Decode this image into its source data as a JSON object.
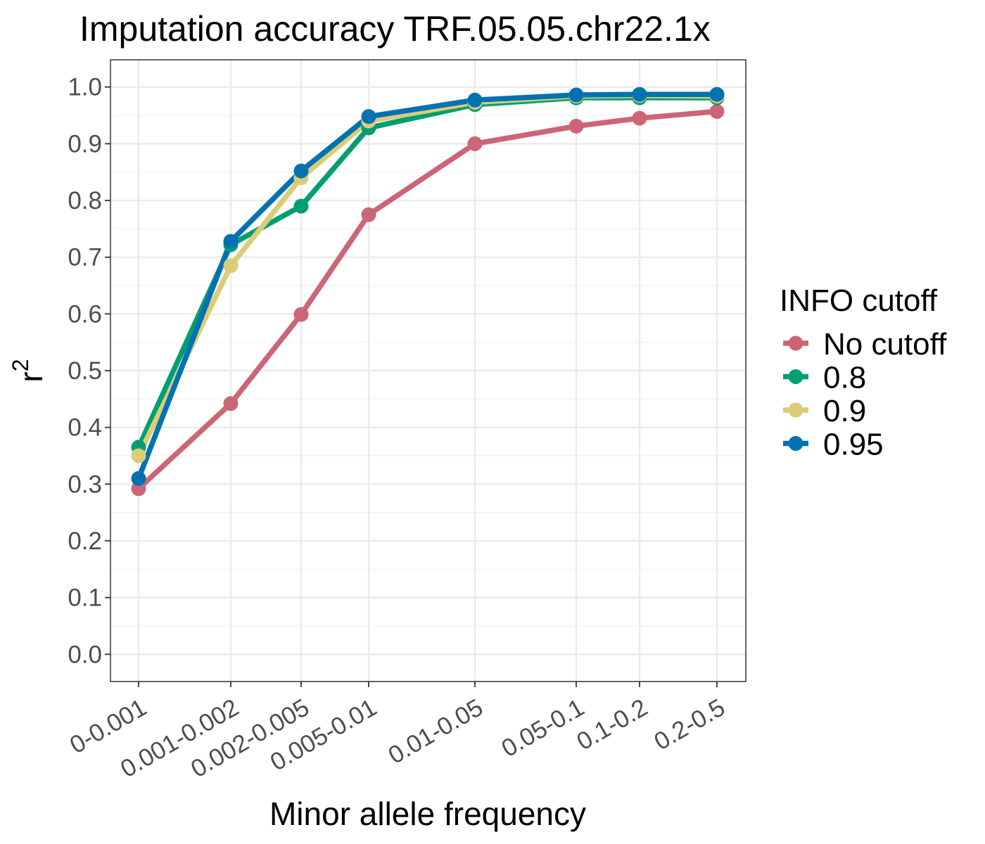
{
  "chart_data": {
    "type": "line",
    "title": "Imputation accuracy TRF.05.05.chr22.1x",
    "xlabel": "Minor allele frequency",
    "ylabel_base": "r",
    "ylabel_sup": "2",
    "categories": [
      "0-0.001",
      "0.001-0.002",
      "0.002-0.005",
      "0.005-0.01",
      "0.01-0.05",
      "0.05-0.1",
      "0.1-0.2",
      "0.2-0.5"
    ],
    "ylim": [
      -0.048,
      1.048
    ],
    "y_ticks": [
      "0.0",
      "0.1",
      "0.2",
      "0.3",
      "0.4",
      "0.5",
      "0.6",
      "0.7",
      "0.8",
      "0.9",
      "1.0"
    ],
    "grid": true,
    "legend": {
      "title": "INFO cutoff",
      "position": "right"
    },
    "series": [
      {
        "name": "No cutoff",
        "color": "#CC6677",
        "values": [
          0.292,
          0.442,
          0.599,
          0.775,
          0.9,
          0.931,
          0.945,
          0.957
        ]
      },
      {
        "name": "0.8",
        "color": "#009E73",
        "values": [
          0.365,
          0.722,
          0.79,
          0.928,
          0.969,
          0.981,
          0.981,
          0.981
        ]
      },
      {
        "name": "0.9",
        "color": "#DDCC77",
        "values": [
          0.35,
          0.685,
          0.84,
          0.94,
          0.973,
          0.984,
          0.985,
          0.984
        ]
      },
      {
        "name": "0.95",
        "color": "#0072B2",
        "values": [
          0.31,
          0.728,
          0.852,
          0.948,
          0.977,
          0.986,
          0.987,
          0.987
        ]
      }
    ]
  }
}
